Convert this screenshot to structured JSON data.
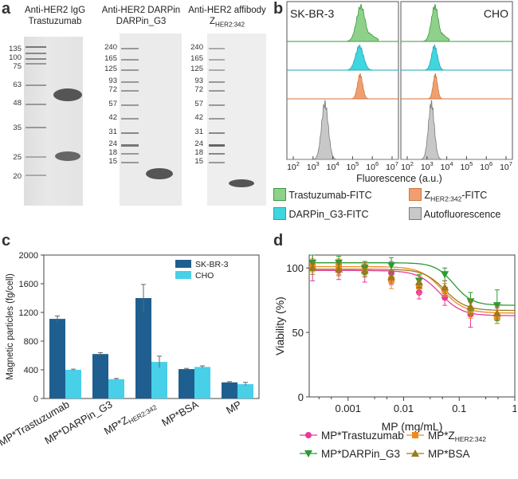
{
  "panels": {
    "a": "a",
    "b": "b",
    "c": "c",
    "d": "d"
  },
  "gel1": {
    "title_line1": "Anti-HER2 IgG",
    "title_line2": "Trastuzumab",
    "markers": [
      "135",
      "100",
      "75",
      "63",
      "48",
      "35",
      "25",
      "20"
    ]
  },
  "gel2": {
    "title_line1": "Anti-HER2 DARPin",
    "title_line2": "DARPin_G3",
    "markers": [
      "240",
      "165",
      "125",
      "93",
      "72",
      "57",
      "42",
      "31",
      "24",
      "18",
      "15"
    ]
  },
  "gel3": {
    "title_line1": "Anti-HER2 affibody",
    "title_line2_main": "Z",
    "title_line2_sub": "HER2:342",
    "markers": [
      "240",
      "165",
      "125",
      "93",
      "72",
      "57",
      "42",
      "31",
      "24",
      "18",
      "15"
    ]
  },
  "flow": {
    "left_title": "SK-BR-3",
    "right_title": "CHO",
    "xlabel": "Fluorescence (a.u.)",
    "ticks_base": "10",
    "tick_exponents": [
      "2",
      "3",
      "4",
      "5",
      "6",
      "7"
    ],
    "legend": {
      "trastuzumab": "Trastuzumab-FITC",
      "z_main": "Z",
      "z_sub": "HER2:342",
      "z_suffix": "-FITC",
      "darpin": "DARPin_G3-FITC",
      "auto": "Autofluorescence"
    },
    "colors": {
      "trastuzumab_fill": "#8fd18a",
      "trastuzumab_line": "#3a9a3a",
      "darpin_fill": "#3fd6df",
      "darpin_line": "#1aa8b5",
      "z_fill": "#f0a070",
      "z_line": "#d2733a",
      "auto_fill": "#c8c8c8",
      "auto_line": "#7a7a7a"
    }
  },
  "chart_data": [
    {
      "type": "bar",
      "title": "",
      "ylabel": "Magnetic particles (fg/cell)",
      "xlabel": "",
      "ylim": [
        0,
        2000
      ],
      "yticks": [
        "0",
        "400",
        "800",
        "1200",
        "1600",
        "2000"
      ],
      "categories": [
        "MP*Trastuzumab",
        "MP*DARPin_G3",
        "MP*Z",
        "MP*BSA",
        "MP"
      ],
      "category_sub": [
        "",
        "",
        "HER2:342",
        "",
        ""
      ],
      "series": [
        {
          "name": "SK-BR-3",
          "color": "#1f5f8f",
          "values": [
            1110,
            620,
            1400,
            410,
            225
          ],
          "errors": [
            40,
            20,
            190,
            10,
            10
          ]
        },
        {
          "name": "CHO",
          "color": "#48d0e8",
          "values": [
            400,
            270,
            510,
            440,
            200
          ],
          "errors": [
            10,
            10,
            80,
            15,
            25
          ]
        }
      ]
    },
    {
      "type": "scatter",
      "title": "",
      "ylabel": "Viability (%)",
      "xlabel": "MP (mg/mL)",
      "xscale": "log",
      "xlim": [
        0.0002,
        1
      ],
      "ylim": [
        0,
        110
      ],
      "xticks": [
        "0.001",
        "0.01",
        "0.1",
        "1"
      ],
      "yticks": [
        "0",
        "50",
        "100"
      ],
      "x": [
        0.00023,
        0.00068,
        0.002,
        0.006,
        0.019,
        0.055,
        0.16,
        0.48
      ],
      "series": [
        {
          "name": "MP*Trastuzumab",
          "sub": "",
          "color": "#e8389a",
          "marker": "circle",
          "values": [
            100,
            98,
            97,
            96,
            81,
            77,
            64,
            63
          ],
          "errors": [
            10,
            7,
            8,
            9,
            5,
            6,
            10,
            6
          ]
        },
        {
          "name": "MP*Z",
          "sub": "HER2:342",
          "color": "#f08a1e",
          "marker": "square",
          "values": [
            102,
            101,
            99,
            91,
            86,
            83,
            67,
            62
          ],
          "errors": [
            5,
            6,
            5,
            7,
            6,
            5,
            6,
            5
          ]
        },
        {
          "name": "MP*DARPin_G3",
          "sub": "",
          "color": "#2a9a36",
          "marker": "triangle-down",
          "values": [
            104,
            104,
            100,
            102,
            90,
            95,
            74,
            71
          ],
          "errors": [
            6,
            5,
            5,
            6,
            5,
            5,
            7,
            12
          ]
        },
        {
          "name": "MP*BSA",
          "sub": "",
          "color": "#9a7a1c",
          "marker": "triangle-up",
          "values": [
            100,
            99,
            98,
            93,
            89,
            85,
            70,
            65
          ],
          "errors": [
            5,
            5,
            5,
            5,
            5,
            5,
            6,
            5
          ]
        }
      ],
      "fits": [
        {
          "color": "#e8389a",
          "bottom": 63,
          "top": 98,
          "ic50": 0.045,
          "hill": 2.2
        },
        {
          "color": "#f08a1e",
          "bottom": 65,
          "top": 101,
          "ic50": 0.05,
          "hill": 2.2
        },
        {
          "color": "#2a9a36",
          "bottom": 71,
          "top": 104,
          "ic50": 0.08,
          "hill": 2.6
        },
        {
          "color": "#9a7a1c",
          "bottom": 67,
          "top": 99,
          "ic50": 0.055,
          "hill": 2.3
        }
      ]
    }
  ]
}
